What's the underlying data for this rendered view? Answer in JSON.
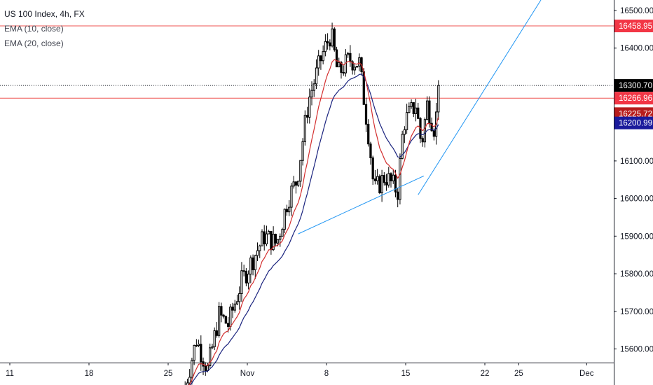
{
  "legend": {
    "title": "US 100 Index, 4h, FX",
    "indicators": [
      "EMA (10, close)",
      "EMA (20, close)"
    ]
  },
  "colors": {
    "candle": "#000000",
    "ema10": "#d32f2f",
    "ema20": "#1a237e",
    "trendline": "#2196f3",
    "hline": "#ef5350",
    "last_price_bg": "#000000",
    "ema10_tag": "#b71c1c",
    "ema20_tag": "#1a1a9c",
    "level_tag": "#f23645"
  },
  "price_tags": {
    "resistance": "16458.95",
    "last": "16300.70",
    "support": "16266.96",
    "ema10": "16225.72",
    "ema20": "16200.99"
  },
  "chart_data": {
    "type": "candlestick",
    "title": "US 100 Index, 4h, FX",
    "ylim": [
      15500,
      16520
    ],
    "y_ticks": [
      15600,
      15700,
      15800,
      15900,
      16000,
      16100,
      16200,
      16300,
      16400,
      16500
    ],
    "y_tick_labels": [
      "15600.00",
      "15700.00",
      "15800.00",
      "15900.00",
      "16000.00",
      "16100.00",
      "16200.00",
      "16300.00",
      "16400.00",
      "16500.00"
    ],
    "x_ticks": [
      {
        "label": "11",
        "day": 11
      },
      {
        "label": "18",
        "day": 18
      },
      {
        "label": "25",
        "day": 25
      },
      {
        "label": "Nov",
        "day": 32
      },
      {
        "label": "8",
        "day": 39
      },
      {
        "label": "15",
        "day": 46
      },
      {
        "label": "22",
        "day": 53
      },
      {
        "label": "25",
        "day": 56
      },
      {
        "label": "Dec",
        "day": 62
      }
    ],
    "horizontal_levels": [
      16458.95,
      16266.96
    ],
    "last_price": 16300.7,
    "trendlines": [
      {
        "from": {
          "day": 36.5,
          "price": 15906
        },
        "to": {
          "day": 47.6,
          "price": 16060
        }
      },
      {
        "from": {
          "day": 47.1,
          "price": 16010
        },
        "to": {
          "day": 58.0,
          "price": 16530
        }
      }
    ],
    "waypoints": [
      {
        "day": 26.5,
        "price": 15500
      },
      {
        "day": 27.5,
        "price": 15625
      },
      {
        "day": 28.5,
        "price": 15545
      },
      {
        "day": 29.5,
        "price": 15690
      },
      {
        "day": 30.3,
        "price": 15665
      },
      {
        "day": 31.5,
        "price": 15780
      },
      {
        "day": 33.5,
        "price": 15900
      },
      {
        "day": 34.6,
        "price": 15880
      },
      {
        "day": 35.6,
        "price": 16000
      },
      {
        "day": 36.4,
        "price": 16050
      },
      {
        "day": 37.4,
        "price": 16260
      },
      {
        "day": 38.6,
        "price": 16380
      },
      {
        "day": 39.4,
        "price": 16440
      },
      {
        "day": 40.0,
        "price": 16330
      },
      {
        "day": 41.0,
        "price": 16370
      },
      {
        "day": 41.9,
        "price": 16360
      },
      {
        "day": 42.8,
        "price": 16150
      },
      {
        "day": 43.2,
        "price": 16020
      },
      {
        "day": 44.2,
        "price": 16060
      },
      {
        "day": 45.3,
        "price": 16020
      },
      {
        "day": 45.8,
        "price": 16200
      },
      {
        "day": 46.9,
        "price": 16250
      },
      {
        "day": 47.4,
        "price": 16140
      },
      {
        "day": 47.9,
        "price": 16250
      },
      {
        "day": 48.6,
        "price": 16180
      },
      {
        "day": 48.9,
        "price": 16300
      }
    ]
  }
}
